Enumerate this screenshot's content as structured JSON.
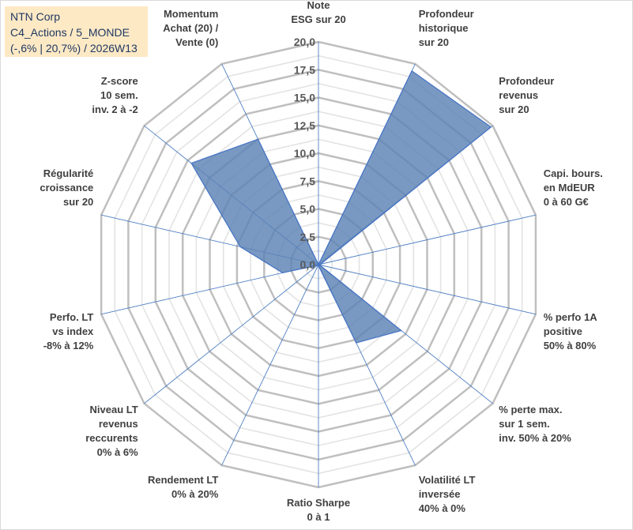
{
  "header": {
    "company": "NTN Corp",
    "category": "C4_Actions / 5_MONDE",
    "summary": "(-,6% | 20,7%) / 2026W13"
  },
  "chart_data": {
    "type": "radar",
    "title": "NTN Corp",
    "rlim": [
      0,
      20
    ],
    "r_ticks": [
      "0,0",
      "2,5",
      "5,0",
      "7,5",
      "10,0",
      "12,5",
      "15,0",
      "17,5",
      "20,0"
    ],
    "grid": true,
    "categories": [
      [
        "Note",
        "ESG sur 20"
      ],
      [
        "Profondeur",
        "historique",
        "sur 20"
      ],
      [
        "Profondeur",
        "revenus",
        "sur 20"
      ],
      [
        "Capi. bours.",
        "en MdEUR",
        "0 à 60 G€"
      ],
      [
        "% perfo 1A",
        "positive",
        "50% à 80%"
      ],
      [
        "% perte max.",
        "sur 1 sem.",
        "inv. 50% à 20%"
      ],
      [
        "Volatilité LT",
        "inversée",
        "40% à 0%"
      ],
      [
        "Ratio Sharpe",
        "0 à 1"
      ],
      [
        "Rendement LT",
        "0% à 20%"
      ],
      [
        "Niveau LT",
        "revenus",
        "reccurents",
        "0% à 6%"
      ],
      [
        "Perfo. LT",
        "vs index",
        "-8% à 12%"
      ],
      [
        "Régularité",
        "croissance",
        "sur 20"
      ],
      [
        "Z-score",
        "10 sem.",
        "inv. 2 à -2"
      ],
      [
        "Momentum",
        "Achat (20) /",
        "Vente (0)"
      ]
    ],
    "series": [
      {
        "name": "NTN Corp",
        "color": "#5b82b5",
        "values": [
          0,
          19.3,
          19.8,
          0.2,
          0.1,
          9.5,
          7.8,
          0.1,
          0.1,
          0.1,
          3.3,
          7.2,
          14.6,
          12.5
        ]
      }
    ]
  }
}
